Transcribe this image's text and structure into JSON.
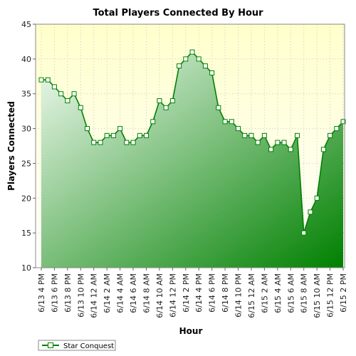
{
  "chart_data": {
    "type": "area",
    "title": "Total Players Connected By Hour",
    "xlabel": "Hour",
    "ylabel": "Players Connected",
    "ylim": [
      10,
      45
    ],
    "yticks": [
      10,
      15,
      20,
      25,
      30,
      35,
      40,
      45
    ],
    "x_tick_labels": [
      "6/13 4 PM",
      "6/13 6 PM",
      "6/13 8 PM",
      "6/13 10 PM",
      "6/14 12 AM",
      "6/14 2 AM",
      "6/14 4 AM",
      "6/14 6 AM",
      "6/14 8 AM",
      "6/14 10 AM",
      "6/14 12 PM",
      "6/14 2 PM",
      "6/14 4 PM",
      "6/14 6 PM",
      "6/14 8 PM",
      "6/14 10 PM",
      "6/15 12 AM",
      "6/15 2 AM",
      "6/15 4 AM",
      "6/15 6 AM",
      "6/15 8 AM",
      "6/15 10 AM",
      "6/15 12 PM",
      "6/15 2 PM"
    ],
    "grid": true,
    "legend_position": "bottom-left",
    "series": [
      {
        "name": "Star Conquest",
        "color": "#008000",
        "values": [
          37,
          37,
          36,
          35,
          34,
          35,
          33,
          30,
          28,
          28,
          29,
          29,
          30,
          28,
          28,
          29,
          29,
          31,
          34,
          33,
          34,
          39,
          40,
          41,
          40,
          39,
          38,
          33,
          31,
          31,
          30,
          29,
          29,
          28,
          29,
          27,
          28,
          28,
          27,
          29,
          15,
          18,
          20,
          27,
          29,
          30,
          31
        ]
      }
    ]
  },
  "colors": {
    "plot_background_top": "#ffffcc",
    "plot_background_bottom": "#ffffff",
    "area_light": "#f2fbf2",
    "area_dark": "#008000",
    "line": "#008000",
    "grid": "#c8c8c8"
  }
}
